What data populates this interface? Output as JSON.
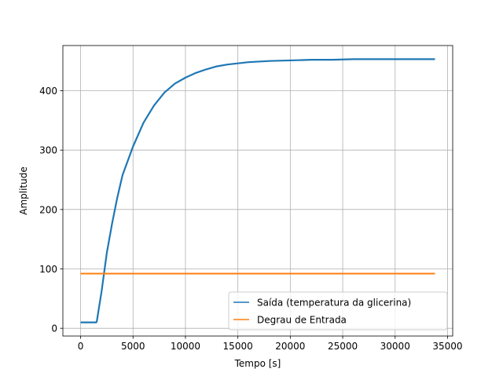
{
  "chart_data": {
    "type": "line",
    "title": "",
    "xlabel": "Tempo [s]",
    "ylabel": "Amplitude",
    "xlim": [
      -1690,
      35490
    ],
    "ylim": [
      -13,
      476
    ],
    "xticks": [
      0,
      5000,
      10000,
      15000,
      20000,
      25000,
      30000,
      35000
    ],
    "yticks": [
      0,
      100,
      200,
      300,
      400
    ],
    "grid": true,
    "legend": "bottom-right",
    "series": [
      {
        "name": "Saída (temperatura da glicerina)",
        "color": "#1f77b4",
        "x": [
          0,
          1500,
          1550,
          2000,
          2500,
          3000,
          3500,
          4000,
          5000,
          6000,
          7000,
          8000,
          9000,
          10000,
          11000,
          12000,
          13000,
          14000,
          15000,
          16000,
          18000,
          20000,
          22000,
          24000,
          26000,
          28000,
          30000,
          32000,
          33800
        ],
        "y": [
          10,
          10,
          12,
          62,
          127,
          176,
          220,
          258,
          306,
          346,
          375,
          397,
          412,
          422,
          430,
          436,
          441,
          444,
          446,
          448,
          450,
          451,
          452,
          452,
          453,
          453,
          453,
          453,
          453
        ]
      },
      {
        "name": "Degrau de Entrada",
        "color": "#ff7f0e",
        "x": [
          0,
          33800
        ],
        "y": [
          92,
          92
        ]
      }
    ]
  }
}
